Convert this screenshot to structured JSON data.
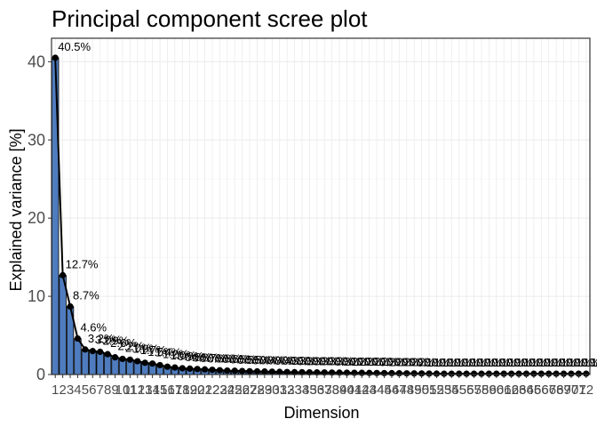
{
  "chart_data": {
    "type": "bar",
    "title": "Principal component scree plot",
    "xlabel": "Dimension",
    "ylabel": "Explained variance [%]",
    "ylim": [
      0,
      43
    ],
    "yticks": [
      0,
      10,
      20,
      30,
      40
    ],
    "grid": true,
    "bar_color": "#4f7cbe",
    "line_color": "#000000",
    "categories": [
      "1",
      "2",
      "3",
      "4",
      "5",
      "6",
      "7",
      "8",
      "9",
      "10",
      "11",
      "12",
      "13",
      "14",
      "15",
      "16",
      "17",
      "18",
      "19",
      "20",
      "21",
      "22",
      "23",
      "24",
      "25",
      "26",
      "27",
      "28",
      "29",
      "30",
      "31",
      "32",
      "33",
      "34",
      "35",
      "36",
      "37",
      "38",
      "39",
      "40",
      "41",
      "42",
      "43",
      "44",
      "45",
      "46",
      "47",
      "48",
      "49",
      "50",
      "51",
      "52",
      "53",
      "54",
      "55",
      "56",
      "57",
      "58",
      "59",
      "60",
      "61",
      "62",
      "63",
      "64",
      "65",
      "66",
      "67",
      "68",
      "69",
      "70",
      "71",
      "72"
    ],
    "values": [
      40.5,
      12.7,
      8.7,
      4.6,
      3.2,
      3.0,
      2.9,
      2.6,
      2.2,
      2.0,
      1.9,
      1.7,
      1.5,
      1.4,
      1.2,
      1.0,
      0.9,
      0.8,
      0.75,
      0.7,
      0.65,
      0.6,
      0.55,
      0.5,
      0.48,
      0.45,
      0.42,
      0.4,
      0.38,
      0.36,
      0.34,
      0.32,
      0.3,
      0.29,
      0.28,
      0.27,
      0.26,
      0.25,
      0.24,
      0.23,
      0.22,
      0.21,
      0.2,
      0.19,
      0.18,
      0.17,
      0.16,
      0.15,
      0.14,
      0.13,
      0.12,
      0.11,
      0.1,
      0.1,
      0.1,
      0.1,
      0.1,
      0.1,
      0.1,
      0.1,
      0.1,
      0.1,
      0.1,
      0.1,
      0.1,
      0.1,
      0.1,
      0.1,
      0.1,
      0.1,
      0.1,
      0.1
    ],
    "labels": [
      "40.5%",
      "12.7%",
      "8.7%",
      "4.6%",
      "3.2%",
      "3.0%",
      "2.9%",
      "2.6%",
      "2.2%",
      "2.0%",
      "1.9%",
      "1.7%",
      "1.5%",
      "1.4%",
      "1.2%",
      "1.0%",
      "0.9%",
      "0.8%",
      "0.8%",
      "0.7%",
      "0.6%",
      "0.6%",
      "0.6%",
      "0.5%",
      "0.5%",
      "0.5%",
      "0.4%",
      "0.4%",
      "0.4%",
      "0.4%",
      "0.3%",
      "0.3%",
      "0.3%",
      "0.3%",
      "0.3%",
      "0.3%",
      "0.3%",
      "0.3%",
      "0.2%",
      "0.2%",
      "0.2%",
      "0.2%",
      "0.2%",
      "0.2%",
      "0.2%",
      "0.2%",
      "0.2%",
      "0.2%",
      "0.1%",
      "0.1%",
      "0.1%",
      "0.1%",
      "0.1%",
      "0.1%",
      "0.1%",
      "0.1%",
      "0.1%",
      "0.1%",
      "0.1%",
      "0.1%",
      "0.1%",
      "0.1%",
      "0.1%",
      "0.1%",
      "0.1%",
      "0.1%",
      "0.1%",
      "0.1%",
      "0.1%",
      "0.1%",
      "0.1%",
      "0.1%"
    ]
  }
}
